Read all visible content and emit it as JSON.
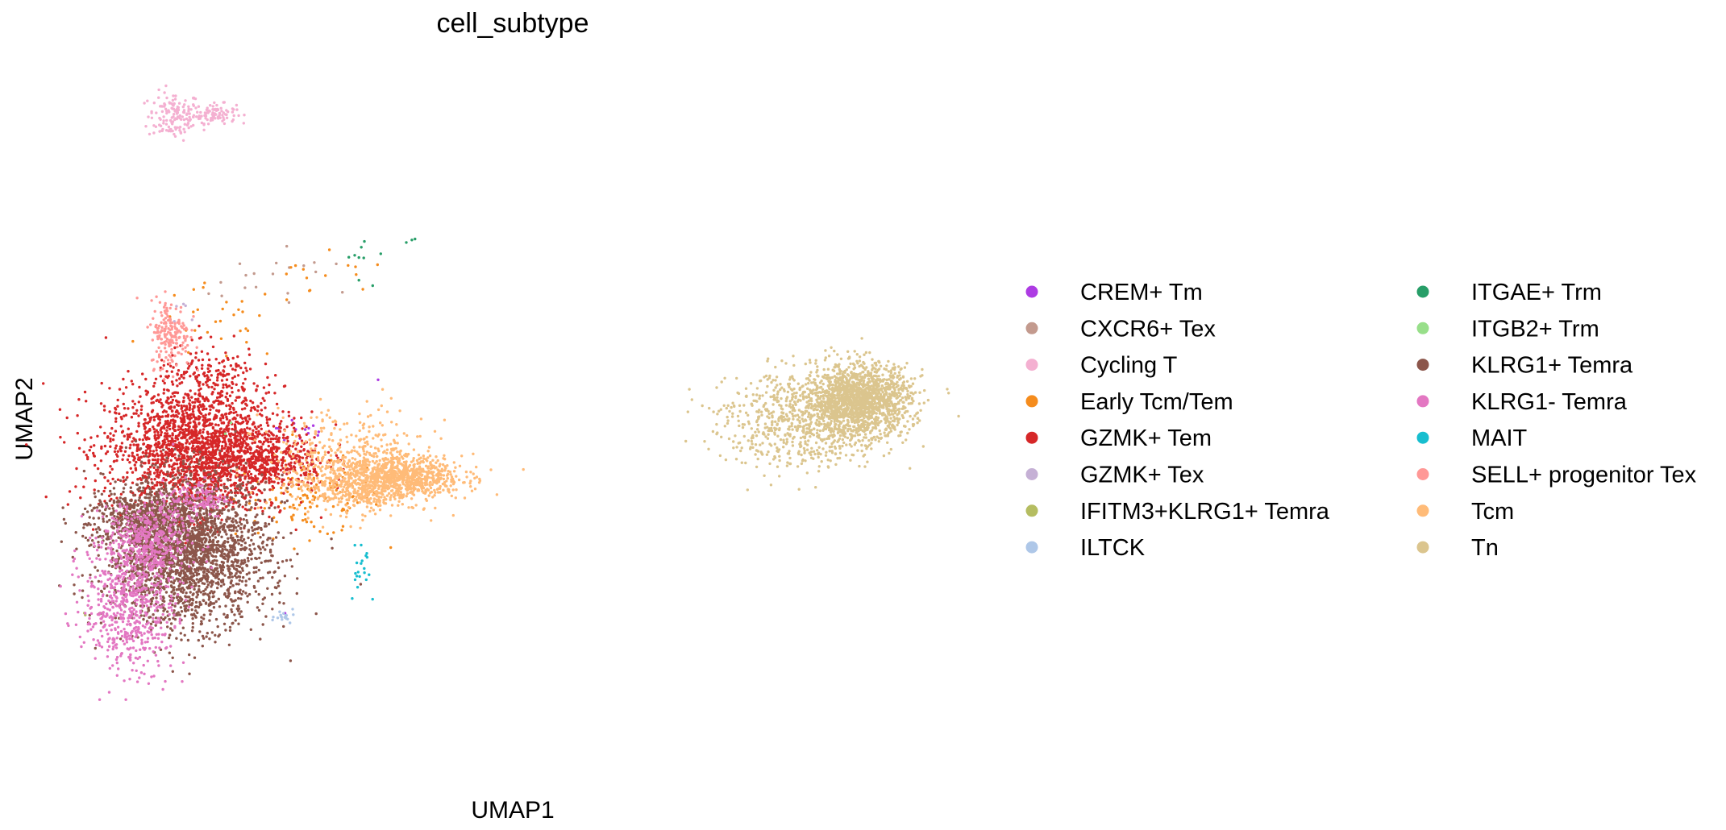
{
  "chart_data": {
    "type": "scatter",
    "title": "cell_subtype",
    "xlabel": "UMAP1",
    "ylabel": "UMAP2",
    "xlim": [
      -0.5,
      10.5
    ],
    "ylim": [
      -1.5,
      13.5
    ],
    "grid": false,
    "axes_visible": false,
    "legend_placement": "right, 2 columns",
    "series": [
      {
        "name": "CREM+ Tm",
        "color": "#ad3be3",
        "clusters": [
          {
            "cx": 2.3,
            "cy": 5.6,
            "sx": 0.25,
            "sy": 0.15,
            "n": 14
          },
          {
            "cx": 2.05,
            "cy": 1.75,
            "sx": 0.05,
            "sy": 0.05,
            "n": 1
          },
          {
            "cx": 3.2,
            "cy": 6.6,
            "sx": 0.05,
            "sy": 0.05,
            "n": 1
          }
        ]
      },
      {
        "name": "CXCR6+ Tex",
        "color": "#c39a8e",
        "clusters": [
          {
            "cx": 2.3,
            "cy": 8.9,
            "sx": 0.45,
            "sy": 0.25,
            "n": 14
          },
          {
            "cx": 1.5,
            "cy": 8.5,
            "sx": 0.2,
            "sy": 0.2,
            "n": 5
          }
        ]
      },
      {
        "name": "Cycling T",
        "color": "#f4b0d1",
        "clusters": [
          {
            "cx": 0.75,
            "cy": 12.1,
            "sx": 0.16,
            "sy": 0.25,
            "n": 140
          },
          {
            "cx": 1.25,
            "cy": 12.15,
            "sx": 0.13,
            "sy": 0.1,
            "n": 90
          }
        ]
      },
      {
        "name": "Early Tcm/Tem",
        "color": "#f58c1d",
        "clusters": [
          {
            "cx": 2.4,
            "cy": 4.2,
            "sx": 0.45,
            "sy": 0.4,
            "n": 130
          },
          {
            "cx": 1.3,
            "cy": 7.8,
            "sx": 0.4,
            "sy": 0.4,
            "n": 30
          },
          {
            "cx": 2.5,
            "cy": 8.6,
            "sx": 0.5,
            "sy": 0.3,
            "n": 15
          }
        ]
      },
      {
        "name": "GZMK+ Tem",
        "color": "#d62728",
        "clusters": [
          {
            "cx": 1.0,
            "cy": 5.2,
            "sx": 0.55,
            "sy": 0.65,
            "n": 1900
          },
          {
            "cx": 1.8,
            "cy": 5.0,
            "sx": 0.4,
            "sy": 0.35,
            "n": 450
          },
          {
            "cx": 1.2,
            "cy": 6.6,
            "sx": 0.35,
            "sy": 0.35,
            "n": 200
          }
        ]
      },
      {
        "name": "GZMK+ Tex",
        "color": "#c5b0d5",
        "clusters": [
          {
            "cx": 0.8,
            "cy": 8.2,
            "sx": 0.2,
            "sy": 0.2,
            "n": 5
          }
        ]
      },
      {
        "name": "IFITM3+KLRG1+ Temra",
        "color": "#b5bd61",
        "clusters": [
          {
            "cx": -0.3,
            "cy": 1.8,
            "sx": 0.15,
            "sy": 0.05,
            "n": 3
          }
        ]
      },
      {
        "name": "ILTCK",
        "color": "#aec7e8",
        "clusters": [
          {
            "cx": 2.1,
            "cy": 1.8,
            "sx": 0.1,
            "sy": 0.08,
            "n": 18
          }
        ]
      },
      {
        "name": "ITGAE+ Trm",
        "color": "#279e68",
        "clusters": [
          {
            "cx": 3.05,
            "cy": 9.1,
            "sx": 0.08,
            "sy": 0.25,
            "n": 9
          },
          {
            "cx": 3.65,
            "cy": 9.55,
            "sx": 0.08,
            "sy": 0.04,
            "n": 3
          }
        ]
      },
      {
        "name": "ITGB2+ Trm",
        "color": "#98df8a",
        "clusters": [
          {
            "cx": 1.5,
            "cy": 5.5,
            "sx": 0.1,
            "sy": 0.1,
            "n": 2
          }
        ]
      },
      {
        "name": "KLRG1+ Temra",
        "color": "#8c564b",
        "clusters": [
          {
            "cx": 0.9,
            "cy": 3.1,
            "sx": 0.5,
            "sy": 0.75,
            "n": 2400
          },
          {
            "cx": 0.35,
            "cy": 3.8,
            "sx": 0.3,
            "sy": 0.3,
            "n": 400
          }
        ]
      },
      {
        "name": "KLRG1- Temra",
        "color": "#e377c2",
        "clusters": [
          {
            "cx": 0.2,
            "cy": 2.1,
            "sx": 0.28,
            "sy": 0.75,
            "n": 650
          },
          {
            "cx": 0.45,
            "cy": 3.3,
            "sx": 0.25,
            "sy": 0.4,
            "n": 350
          },
          {
            "cx": 1.05,
            "cy": 4.2,
            "sx": 0.18,
            "sy": 0.2,
            "n": 120
          }
        ]
      },
      {
        "name": "MAIT",
        "color": "#17becf",
        "clusters": [
          {
            "cx": 3.05,
            "cy": 2.8,
            "sx": 0.1,
            "sy": 0.4,
            "n": 20
          }
        ]
      },
      {
        "name": "SELL+ progenitor Tex",
        "color": "#ff9896",
        "clusters": [
          {
            "cx": 0.7,
            "cy": 7.6,
            "sx": 0.12,
            "sy": 0.35,
            "n": 180
          }
        ]
      },
      {
        "name": "Tcm",
        "color": "#ffbb78",
        "clusters": [
          {
            "cx": 3.0,
            "cy": 4.5,
            "sx": 0.4,
            "sy": 0.3,
            "n": 550
          },
          {
            "cx": 3.6,
            "cy": 4.65,
            "sx": 0.35,
            "sy": 0.22,
            "n": 650
          },
          {
            "cx": 2.9,
            "cy": 5.2,
            "sx": 0.5,
            "sy": 0.45,
            "n": 250
          }
        ]
      },
      {
        "name": "Tn",
        "color": "#dbc58e",
        "clusters": [
          {
            "cx": 9.2,
            "cy": 6.25,
            "sx": 0.3,
            "sy": 0.35,
            "n": 1400
          },
          {
            "cx": 8.6,
            "cy": 5.85,
            "sx": 0.5,
            "sy": 0.5,
            "n": 800
          },
          {
            "cx": 7.9,
            "cy": 5.6,
            "sx": 0.3,
            "sy": 0.45,
            "n": 60
          }
        ]
      }
    ]
  }
}
